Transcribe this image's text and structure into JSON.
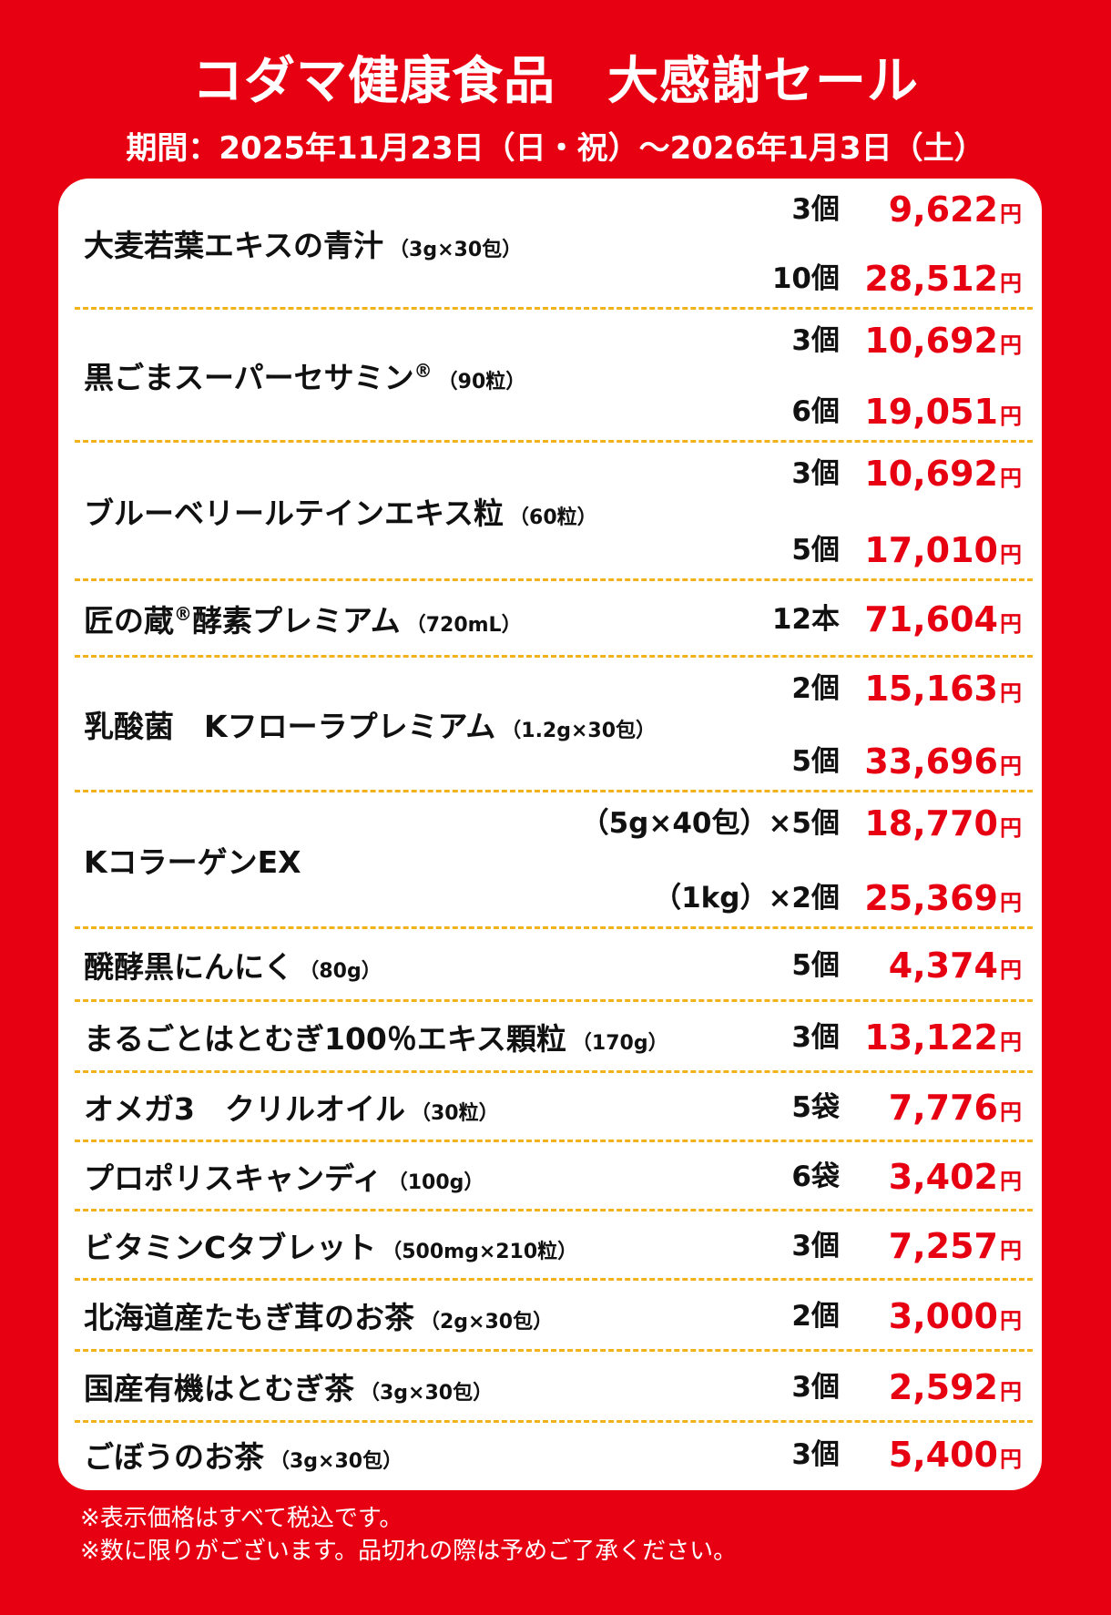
{
  "header": {
    "title": "コダマ健康食品　大感謝セール",
    "period": "期間：2025年11月23日（日・祝）～2026年1月3日（土）"
  },
  "currency": "円",
  "products": [
    {
      "name": "大麦若葉エキスの青汁",
      "spec": "（3g×30包）",
      "options": [
        {
          "qty": "3個",
          "price": "9,622"
        },
        {
          "qty": "10個",
          "price": "28,512"
        }
      ]
    },
    {
      "name": "黒ごまスーパーセサミン",
      "mark": "®",
      "spec": "（90粒）",
      "options": [
        {
          "qty": "3個",
          "price": "10,692"
        },
        {
          "qty": "6個",
          "price": "19,051"
        }
      ]
    },
    {
      "name": "ブルーベリールテインエキス粒",
      "spec": "（60粒）",
      "options": [
        {
          "qty": "3個",
          "price": "10,692"
        },
        {
          "qty": "5個",
          "price": "17,010"
        }
      ]
    },
    {
      "name": "匠の蔵",
      "mark": "®",
      "name2": "酵素プレミアム",
      "spec": "（720mL）",
      "options": [
        {
          "qty": "12本",
          "price": "71,604"
        }
      ]
    },
    {
      "name": "乳酸菌　Kフローラプレミアム",
      "spec": "（1.2g×30包）",
      "options": [
        {
          "qty": "2個",
          "price": "15,163"
        },
        {
          "qty": "5個",
          "price": "33,696"
        }
      ]
    },
    {
      "name": "KコラーゲンEX",
      "spec": "",
      "options": [
        {
          "qty": "（5g×40包）×5個",
          "price": "18,770"
        },
        {
          "qty": "（1kg）×2個",
          "price": "25,369"
        }
      ]
    },
    {
      "name": "醗酵黒にんにく",
      "spec": "（80g）",
      "options": [
        {
          "qty": "5個",
          "price": "4,374"
        }
      ]
    },
    {
      "name": "まるごとはとむぎ100％エキス顆粒",
      "spec": "（170g）",
      "options": [
        {
          "qty": "3個",
          "price": "13,122"
        }
      ]
    },
    {
      "name": "オメガ3　クリルオイル",
      "spec": "（30粒）",
      "options": [
        {
          "qty": "5袋",
          "price": "7,776"
        }
      ]
    },
    {
      "name": "プロポリスキャンディ",
      "spec": "（100g）",
      "options": [
        {
          "qty": "6袋",
          "price": "3,402"
        }
      ]
    },
    {
      "name": "ビタミンCタブレット",
      "spec": "（500mg×210粒）",
      "options": [
        {
          "qty": "3個",
          "price": "7,257"
        }
      ]
    },
    {
      "name": "北海道産たもぎ茸のお茶",
      "spec": "（2g×30包）",
      "options": [
        {
          "qty": "2個",
          "price": "3,000"
        }
      ]
    },
    {
      "name": "国産有機はとむぎ茶",
      "spec": "（3g×30包）",
      "options": [
        {
          "qty": "3個",
          "price": "2,592"
        }
      ]
    },
    {
      "name": "ごぼうのお茶",
      "spec": "（3g×30包）",
      "options": [
        {
          "qty": "3個",
          "price": "5,400"
        }
      ]
    }
  ],
  "notes": [
    "※表示価格はすべて税込です。",
    "※数に限りがございます。品切れの際は予めご了承ください。"
  ]
}
